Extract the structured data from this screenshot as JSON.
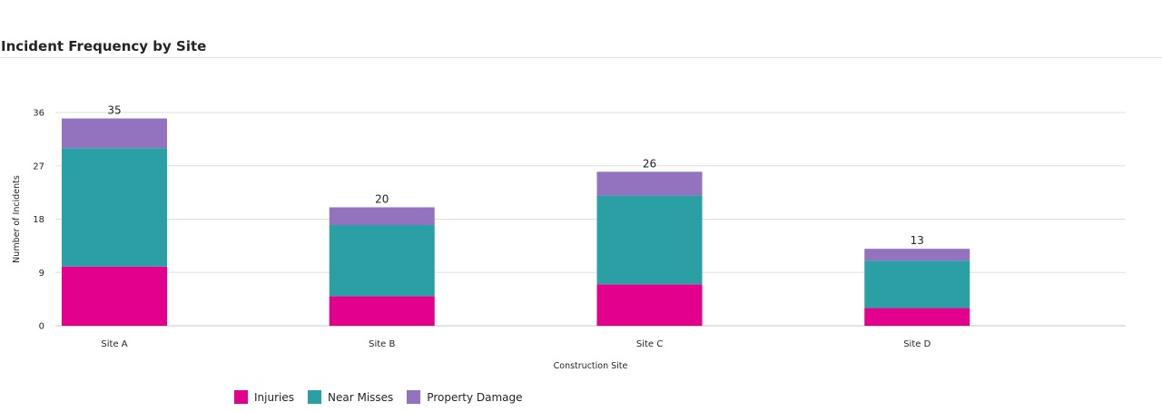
{
  "title": "Incident Frequency by Site",
  "chart_data": {
    "type": "bar",
    "stacked": true,
    "categories": [
      "Site A",
      "Site B",
      "Site C",
      "Site D"
    ],
    "series": [
      {
        "name": "Injuries",
        "color": "#E3008C",
        "values": [
          10,
          5,
          7,
          3
        ]
      },
      {
        "name": "Near Misses",
        "color": "#2AA0A4",
        "values": [
          20,
          12,
          15,
          8
        ]
      },
      {
        "name": "Property Damage",
        "color": "#9373C0",
        "values": [
          5,
          3,
          4,
          2
        ]
      }
    ],
    "totals": [
      35,
      20,
      26,
      13
    ],
    "xlabel": "Construction Site",
    "ylabel": "Number of Incidents",
    "ylim": [
      0,
      36
    ],
    "yticks": [
      0,
      9,
      18,
      27,
      36
    ],
    "grid": true,
    "legend_position": "bottom-left"
  }
}
